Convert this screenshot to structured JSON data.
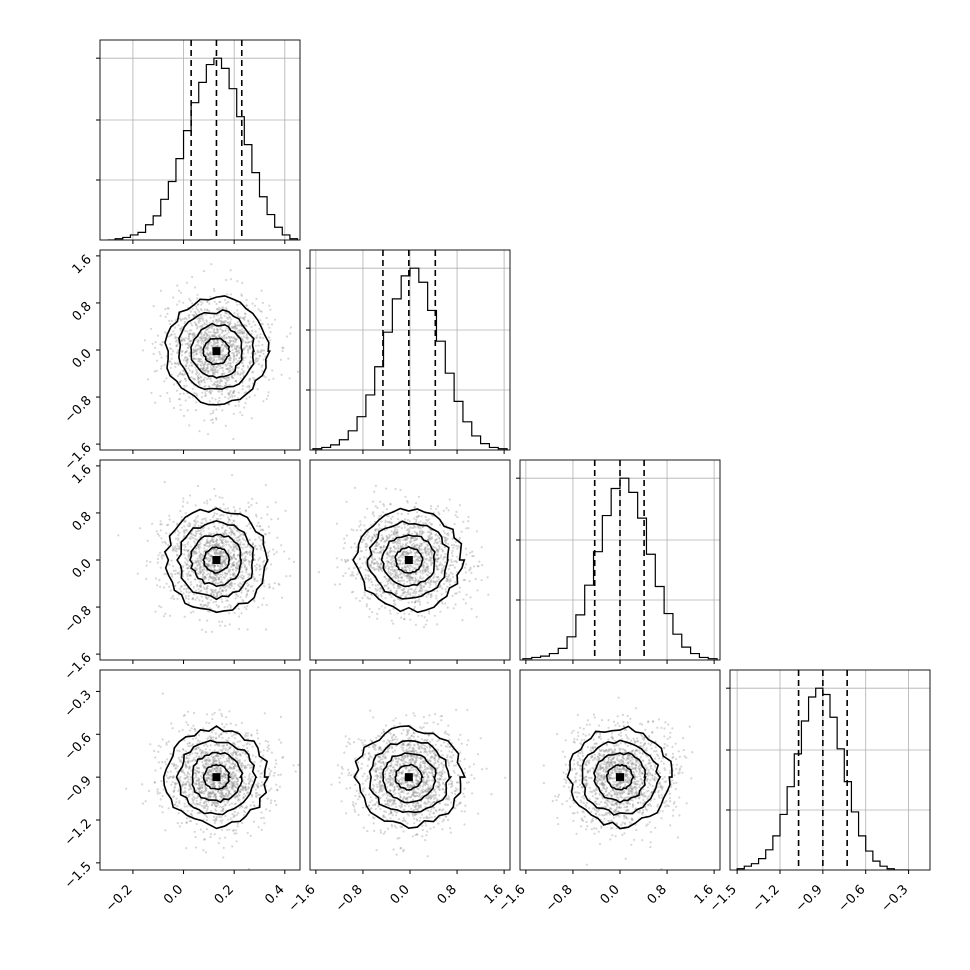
{
  "chart_data": {
    "type": "corner",
    "grid": true,
    "n_params": 4,
    "axis_ticks": [
      [
        "-0.2",
        "0.0",
        "0.2",
        "0.4"
      ],
      [
        "-1.6",
        "-0.8",
        "0.0",
        "0.8",
        "1.6"
      ],
      [
        "-1.6",
        "-0.8",
        "0.0",
        "0.8",
        "1.6"
      ],
      [
        "-1.5",
        "-1.2",
        "-0.9",
        "-0.6",
        "-0.3"
      ]
    ],
    "axis_tick_values": [
      [
        -0.2,
        0.0,
        0.2,
        0.4
      ],
      [
        -1.6,
        -0.8,
        0.0,
        0.8,
        1.6
      ],
      [
        -1.6,
        -0.8,
        0.0,
        0.8,
        1.6
      ],
      [
        -1.5,
        -1.2,
        -0.9,
        -0.6,
        -0.3
      ]
    ],
    "axis_ranges": [
      [
        -0.33,
        0.46
      ],
      [
        -1.7,
        1.7
      ],
      [
        -1.7,
        1.7
      ],
      [
        -1.55,
        -0.15
      ]
    ],
    "histograms": [
      {
        "param": 0,
        "bin_edges": [
          -0.3,
          -0.27,
          -0.24,
          -0.21,
          -0.18,
          -0.15,
          -0.12,
          -0.09,
          -0.06,
          -0.03,
          0.0,
          0.03,
          0.06,
          0.09,
          0.12,
          0.15,
          0.18,
          0.21,
          0.24,
          0.27,
          0.3,
          0.33,
          0.36,
          0.39,
          0.42,
          0.45
        ],
        "counts": [
          0,
          1,
          2,
          4,
          6,
          12,
          19,
          32,
          46,
          64,
          86,
          108,
          124,
          138,
          143,
          135,
          119,
          97,
          75,
          53,
          34,
          20,
          10,
          4,
          1
        ],
        "quantiles": [
          0.03,
          0.13,
          0.23
        ]
      },
      {
        "param": 1,
        "bin_edges": [
          -1.65,
          -1.5,
          -1.35,
          -1.2,
          -1.05,
          -0.9,
          -0.75,
          -0.6,
          -0.45,
          -0.3,
          -0.15,
          0.0,
          0.15,
          0.3,
          0.45,
          0.6,
          0.75,
          0.9,
          1.05,
          1.2,
          1.35,
          1.5,
          1.65
        ],
        "counts": [
          1,
          2,
          4,
          8,
          15,
          26,
          43,
          65,
          92,
          118,
          136,
          142,
          131,
          109,
          85,
          60,
          38,
          22,
          11,
          5,
          2,
          1
        ],
        "quantiles": [
          -0.46,
          -0.02,
          0.43
        ]
      },
      {
        "param": 2,
        "bin_edges": [
          -1.65,
          -1.5,
          -1.35,
          -1.2,
          -1.05,
          -0.9,
          -0.75,
          -0.6,
          -0.45,
          -0.3,
          -0.15,
          0.0,
          0.15,
          0.3,
          0.45,
          0.6,
          0.75,
          0.9,
          1.05,
          1.2,
          1.35,
          1.5,
          1.65
        ],
        "counts": [
          1,
          2,
          3,
          5,
          9,
          18,
          35,
          58,
          84,
          112,
          133,
          141,
          130,
          110,
          82,
          57,
          36,
          20,
          10,
          5,
          2,
          1
        ],
        "quantiles": [
          -0.43,
          0.0,
          0.41
        ]
      },
      {
        "param": 3,
        "bin_edges": [
          -1.5,
          -1.45,
          -1.4,
          -1.35,
          -1.3,
          -1.25,
          -1.2,
          -1.15,
          -1.1,
          -1.05,
          -1.0,
          -0.95,
          -0.9,
          -0.85,
          -0.8,
          -0.75,
          -0.7,
          -0.65,
          -0.6,
          -0.55,
          -0.5,
          -0.45,
          -0.4,
          -0.35,
          -0.3
        ],
        "counts": [
          1,
          3,
          5,
          9,
          16,
          27,
          44,
          66,
          92,
          118,
          137,
          144,
          139,
          121,
          96,
          70,
          46,
          27,
          15,
          7,
          3,
          1,
          0,
          0
        ],
        "quantiles": [
          -1.07,
          -0.9,
          -0.73
        ]
      }
    ],
    "pairs": [
      {
        "x_param": 0,
        "y_param": 1,
        "mean": [
          0.13,
          -0.02
        ],
        "std": [
          0.1,
          0.45
        ]
      },
      {
        "x_param": 0,
        "y_param": 2,
        "mean": [
          0.13,
          0.0
        ],
        "std": [
          0.1,
          0.43
        ]
      },
      {
        "x_param": 1,
        "y_param": 2,
        "mean": [
          -0.02,
          0.0
        ],
        "std": [
          0.45,
          0.43
        ]
      },
      {
        "x_param": 0,
        "y_param": 3,
        "mean": [
          0.13,
          -0.9
        ],
        "std": [
          0.1,
          0.17
        ]
      },
      {
        "x_param": 1,
        "y_param": 3,
        "mean": [
          -0.02,
          -0.9
        ],
        "std": [
          0.45,
          0.17
        ]
      },
      {
        "x_param": 2,
        "y_param": 3,
        "mean": [
          0.0,
          -0.9
        ],
        "std": [
          0.43,
          0.17
        ]
      }
    ],
    "contour_levels_sigma": [
      0.5,
      1.0,
      1.5,
      2.0
    ]
  }
}
